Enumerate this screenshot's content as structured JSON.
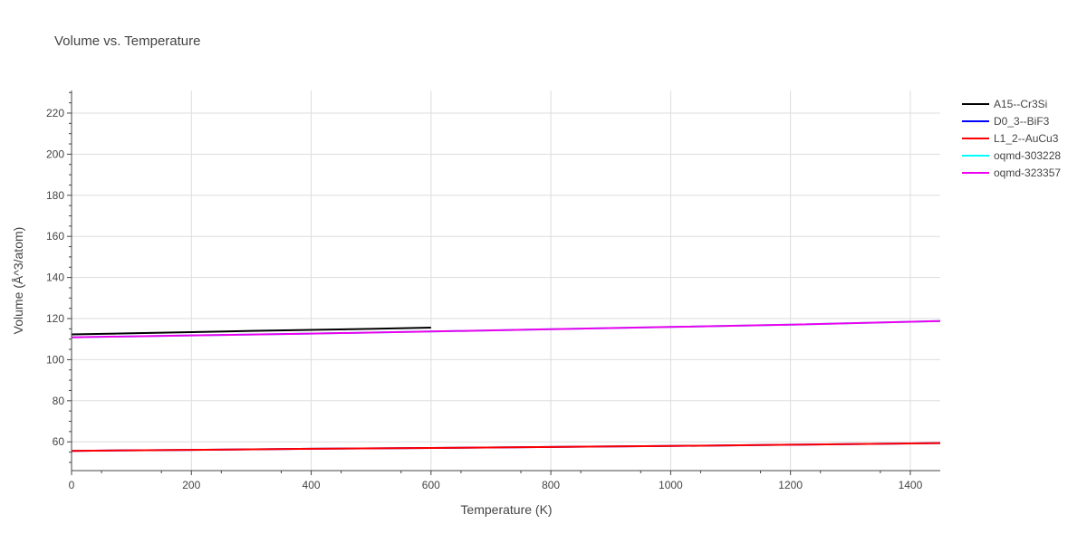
{
  "chart_data": {
    "type": "line",
    "title": "Volume vs. Temperature",
    "xlabel": "Temperature (K)",
    "ylabel": "Volume (Å^3/atom)",
    "xlim": [
      0,
      1450
    ],
    "ylim": [
      46,
      231
    ],
    "xticks": [
      0,
      200,
      400,
      600,
      800,
      1000,
      1200,
      1400
    ],
    "yticks": [
      60,
      80,
      100,
      120,
      140,
      160,
      180,
      200,
      220
    ],
    "grid": true,
    "legend_position": "top-right",
    "series": [
      {
        "name": "A15--Cr3Si",
        "color": "#000000",
        "x": [
          0,
          100,
          200,
          300,
          400,
          500,
          600
        ],
        "y": [
          112.3,
          112.8,
          113.4,
          114.0,
          114.5,
          115.0,
          115.6
        ]
      },
      {
        "name": "D0_3--BiF3",
        "color": "#0000ff",
        "x": [
          0,
          200,
          400,
          600,
          800,
          1000,
          1200,
          1450
        ],
        "y": [
          55.6,
          56.1,
          56.6,
          57.0,
          57.5,
          58.0,
          58.6,
          59.4
        ]
      },
      {
        "name": "L1_2--AuCu3",
        "color": "#ff0000",
        "x": [
          0,
          200,
          400,
          600,
          800,
          1000,
          1200,
          1450
        ],
        "y": [
          55.6,
          56.1,
          56.6,
          57.0,
          57.5,
          58.0,
          58.6,
          59.4
        ]
      },
      {
        "name": "oqmd-303228",
        "color": "#00ffff",
        "x": [
          0,
          200,
          400,
          600,
          800,
          1000,
          1200,
          1450
        ],
        "y": [
          110.9,
          111.8,
          112.7,
          113.7,
          114.8,
          115.9,
          117.0,
          118.8
        ]
      },
      {
        "name": "oqmd-323357",
        "color": "#ee00ee",
        "x": [
          0,
          200,
          400,
          600,
          800,
          1000,
          1200,
          1450
        ],
        "y": [
          110.9,
          111.8,
          112.7,
          113.7,
          114.8,
          115.9,
          117.0,
          118.8
        ]
      }
    ]
  }
}
